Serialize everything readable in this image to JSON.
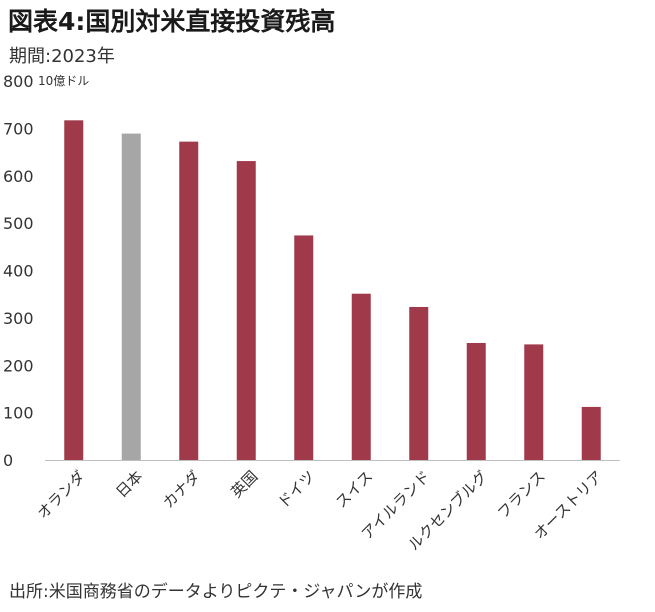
{
  "title": "図表4:国別対米直接投資残高",
  "subtitle": "期間:2023年",
  "source": "出所:米国商務省のデータよりピクテ・ジャパンが作成",
  "chart_data": {
    "type": "bar",
    "unit_label": "10億ドル",
    "categories": [
      "オランダ",
      "日本",
      "カナダ",
      "英国",
      "ドイツ",
      "スイス",
      "アイルランド",
      "ルクセンブルグ",
      "フランス",
      "オーストリア"
    ],
    "values": [
      717,
      689,
      672,
      631,
      474,
      351,
      323,
      247,
      244,
      112
    ],
    "ylim": [
      0,
      800
    ],
    "yticks": [
      0,
      100,
      200,
      300,
      400,
      500,
      600,
      700,
      800
    ],
    "colors": {
      "default": "#a0394a",
      "highlight": "#a6a6a6"
    },
    "highlight_category": "日本",
    "grid": false
  }
}
